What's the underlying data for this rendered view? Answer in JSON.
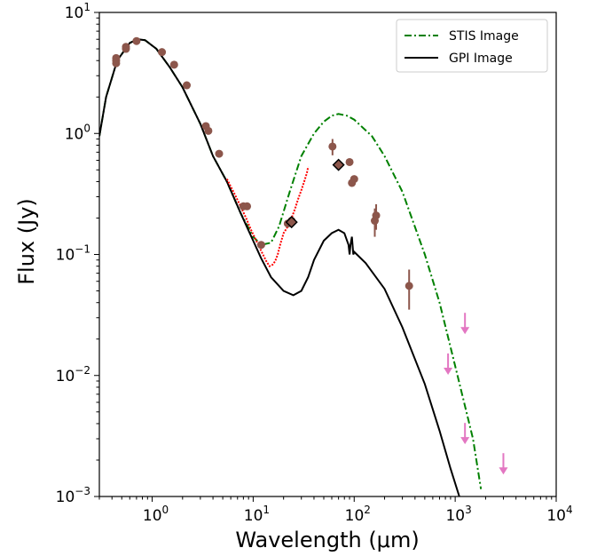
{
  "chart_data": {
    "type": "scatter",
    "title": "",
    "xlabel": "Wavelength (μm)",
    "ylabel": "Flux (Jy)",
    "xscale": "log",
    "yscale": "log",
    "xlim": [
      0.3,
      10000
    ],
    "ylim": [
      0.001,
      10
    ],
    "x_ticks": [
      {
        "value": 1,
        "base": "10",
        "exp": "0"
      },
      {
        "value": 10,
        "base": "10",
        "exp": "1"
      },
      {
        "value": 100,
        "base": "10",
        "exp": "2"
      },
      {
        "value": 1000,
        "base": "10",
        "exp": "3"
      },
      {
        "value": 10000,
        "base": "10",
        "exp": "4"
      }
    ],
    "y_ticks": [
      {
        "value": 0.001,
        "base": "10",
        "exp": "−3"
      },
      {
        "value": 0.01,
        "base": "10",
        "exp": "−2"
      },
      {
        "value": 0.1,
        "base": "10",
        "exp": "−1"
      },
      {
        "value": 1,
        "base": "10",
        "exp": "0"
      },
      {
        "value": 10,
        "base": "10",
        "exp": "1"
      }
    ],
    "grid": false,
    "legend_position": "top-right",
    "legend": [
      {
        "label": "STIS Image",
        "color": "#008000",
        "style": "dashdot"
      },
      {
        "label": "GPI Image",
        "color": "#000000",
        "style": "solid"
      }
    ],
    "series": [
      {
        "name": "STIS Image",
        "kind": "line",
        "color": "#008000",
        "style": "dashdot",
        "x": [
          0.3,
          0.35,
          0.45,
          0.6,
          0.72,
          0.85,
          1.1,
          1.5,
          2.0,
          3.0,
          4.0,
          5.5,
          7.5,
          10,
          12,
          15,
          18,
          23,
          30,
          40,
          50,
          60,
          70,
          85,
          100,
          150,
          200,
          300,
          500,
          700,
          1000,
          1500,
          1800
        ],
        "y": [
          0.95,
          2.0,
          4.0,
          5.6,
          6.0,
          5.9,
          5.0,
          3.5,
          2.4,
          1.2,
          0.65,
          0.4,
          0.22,
          0.14,
          0.12,
          0.125,
          0.17,
          0.33,
          0.65,
          1.0,
          1.25,
          1.4,
          1.45,
          1.4,
          1.3,
          0.95,
          0.65,
          0.33,
          0.1,
          0.04,
          0.012,
          0.003,
          0.00115
        ]
      },
      {
        "name": "GPI Image",
        "kind": "line",
        "color": "#000000",
        "style": "solid",
        "x": [
          0.3,
          0.35,
          0.45,
          0.6,
          0.72,
          0.85,
          1.1,
          1.5,
          2.0,
          3.0,
          4.0,
          5.5,
          7.5,
          10,
          12,
          15,
          20,
          25,
          30,
          35,
          40,
          50,
          60,
          70,
          80,
          88,
          90,
          92,
          95,
          98,
          100,
          130,
          200,
          300,
          500,
          700,
          900,
          1100
        ],
        "y": [
          0.95,
          2.0,
          4.0,
          5.6,
          6.0,
          5.9,
          5.0,
          3.5,
          2.4,
          1.2,
          0.65,
          0.4,
          0.22,
          0.13,
          0.093,
          0.065,
          0.05,
          0.046,
          0.05,
          0.065,
          0.09,
          0.13,
          0.15,
          0.16,
          0.15,
          0.12,
          0.1,
          0.12,
          0.14,
          0.1,
          0.105,
          0.085,
          0.052,
          0.025,
          0.0085,
          0.0035,
          0.0017,
          0.001
        ]
      },
      {
        "name": "",
        "kind": "spectrum",
        "color": "#ff0000",
        "x": [
          5.5,
          6.5,
          7.5,
          8.5,
          9.5,
          10.5,
          11.5,
          12.5,
          13.5,
          14.5,
          15.5,
          16.5,
          17.5,
          18.5,
          20,
          22,
          24,
          26,
          28,
          30,
          32,
          34,
          35
        ],
        "y": [
          0.42,
          0.32,
          0.25,
          0.2,
          0.16,
          0.135,
          0.115,
          0.1,
          0.088,
          0.08,
          0.082,
          0.088,
          0.1,
          0.12,
          0.15,
          0.17,
          0.2,
          0.24,
          0.29,
          0.34,
          0.4,
          0.47,
          0.53
        ]
      },
      {
        "name": "",
        "kind": "points",
        "color": "#8c564b",
        "x": [
          0.44,
          0.44,
          0.44,
          0.55,
          0.55,
          0.7,
          1.25,
          1.65,
          2.2,
          3.4,
          3.6,
          4.6,
          8.0,
          8.7,
          12,
          22,
          24,
          61,
          90,
          95,
          100,
          160,
          165,
          350
        ],
        "y": [
          3.8,
          4.0,
          4.2,
          5.0,
          5.2,
          5.8,
          4.7,
          3.7,
          2.5,
          1.15,
          1.05,
          0.68,
          0.25,
          0.25,
          0.12,
          0.18,
          0.19,
          0.78,
          0.58,
          0.39,
          0.42,
          0.19,
          0.21,
          0.055
        ],
        "yerr": [
          0,
          0,
          0,
          0,
          0,
          0,
          0,
          0,
          0,
          0,
          0,
          0,
          0,
          0,
          0,
          0,
          0,
          0.12,
          0,
          0,
          0,
          0.05,
          0.05,
          0.02
        ]
      },
      {
        "name": "",
        "kind": "diamonds",
        "color": "#8c564b",
        "x": [
          24,
          70
        ],
        "y": [
          0.185,
          0.55
        ]
      },
      {
        "name": "",
        "kind": "upper_limits",
        "color": "#e377c2",
        "x": [
          850,
          1250,
          1250,
          3000
        ],
        "y": [
          0.012,
          0.026,
          0.0032,
          0.0018
        ]
      }
    ]
  }
}
